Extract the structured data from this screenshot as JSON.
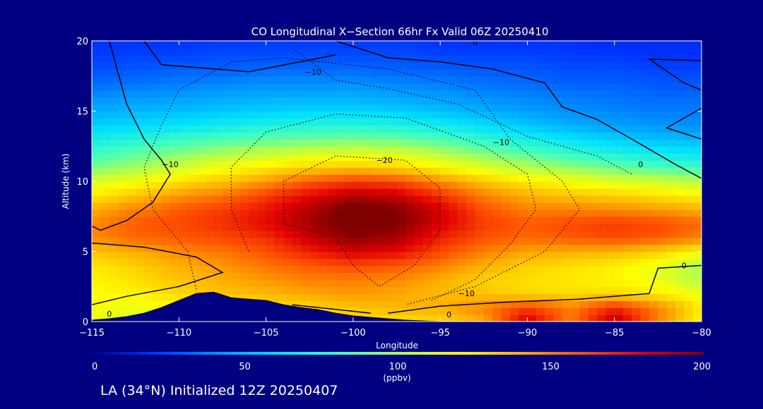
{
  "chart_data": {
    "type": "heatmap",
    "title": "CO Longitudinal X−Section 66hr  Fx Valid 06Z 20250410",
    "xlabel": "Longitude",
    "ylabel": "Altitude (km)",
    "xlim": [
      -115,
      -80
    ],
    "ylim": [
      0,
      20
    ],
    "x_ticks": [
      -115,
      -110,
      -105,
      -100,
      -95,
      -90,
      -85,
      -80
    ],
    "x_tick_labels": [
      "−115",
      "−110",
      "−105",
      "−100",
      "−95",
      "−90",
      "−85",
      "−80"
    ],
    "y_ticks": [
      0,
      5,
      10,
      15,
      20
    ],
    "y_tick_labels": [
      "0",
      "5",
      "10",
      "15",
      "20"
    ],
    "grid": false,
    "colorbar": {
      "min": 0,
      "max": 200,
      "ticks": [
        0,
        50,
        100,
        150,
        200
      ],
      "tick_labels": [
        "0",
        "50",
        "100",
        "150",
        "200"
      ],
      "units": "(ppbv)",
      "colors": [
        "#000080",
        "#0030ff",
        "#0090ff",
        "#00e0ff",
        "#40ffc0",
        "#b0ff50",
        "#ffff00",
        "#ffb000",
        "#ff5000",
        "#e00000",
        "#800000"
      ]
    },
    "contour_labels": [
      "0",
      "−10",
      "−20"
    ],
    "heatmap_grid": {
      "x": [
        -115,
        -112.5,
        -110,
        -107.5,
        -105,
        -102.5,
        -100,
        -97.5,
        -95,
        -92.5,
        -90,
        -87.5,
        -85,
        -82.5,
        -80
      ],
      "y": [
        0,
        1,
        2,
        3,
        4,
        5,
        6,
        7,
        8,
        9,
        10,
        11,
        12,
        13,
        14,
        15,
        16,
        17,
        18,
        19,
        20
      ],
      "z": [
        [
          115,
          110,
          112,
          118,
          120,
          122,
          125,
          128,
          130,
          140,
          185,
          150,
          190,
          150,
          120
        ],
        [
          118,
          115,
          118,
          122,
          126,
          130,
          135,
          138,
          140,
          150,
          165,
          150,
          170,
          150,
          125
        ],
        [
          120,
          122,
          130,
          135,
          138,
          142,
          145,
          142,
          138,
          135,
          130,
          128,
          130,
          125,
          115
        ],
        [
          122,
          128,
          135,
          140,
          145,
          150,
          150,
          148,
          140,
          132,
          128,
          125,
          122,
          115,
          100
        ],
        [
          125,
          132,
          140,
          145,
          152,
          158,
          162,
          158,
          150,
          140,
          132,
          128,
          124,
          115,
          100
        ],
        [
          135,
          140,
          148,
          152,
          160,
          172,
          182,
          178,
          162,
          150,
          142,
          140,
          138,
          132,
          120
        ],
        [
          148,
          155,
          158,
          162,
          168,
          185,
          198,
          192,
          172,
          160,
          155,
          158,
          162,
          158,
          150
        ],
        [
          148,
          158,
          162,
          168,
          178,
          192,
          205,
          200,
          182,
          165,
          158,
          162,
          165,
          162,
          155
        ],
        [
          140,
          150,
          158,
          165,
          175,
          190,
          205,
          200,
          182,
          160,
          150,
          150,
          148,
          145,
          140
        ],
        [
          125,
          135,
          145,
          152,
          165,
          178,
          190,
          185,
          168,
          150,
          140,
          135,
          132,
          128,
          122
        ],
        [
          110,
          118,
          128,
          135,
          145,
          158,
          165,
          162,
          148,
          135,
          125,
          118,
          112,
          108,
          102
        ],
        [
          90,
          98,
          108,
          118,
          125,
          132,
          135,
          132,
          122,
          112,
          102,
          95,
          88,
          82,
          78
        ],
        [
          78,
          85,
          92,
          100,
          105,
          110,
          112,
          110,
          102,
          92,
          84,
          76,
          70,
          66,
          62
        ],
        [
          68,
          72,
          78,
          82,
          86,
          88,
          90,
          88,
          82,
          75,
          68,
          62,
          56,
          52,
          50
        ],
        [
          56,
          58,
          62,
          66,
          70,
          72,
          72,
          70,
          66,
          60,
          54,
          48,
          44,
          42,
          40
        ],
        [
          48,
          50,
          52,
          54,
          56,
          58,
          58,
          56,
          52,
          48,
          44,
          40,
          38,
          36,
          36
        ],
        [
          40,
          42,
          44,
          46,
          48,
          48,
          48,
          46,
          44,
          40,
          38,
          36,
          34,
          32,
          32
        ],
        [
          32,
          34,
          36,
          38,
          40,
          40,
          40,
          38,
          36,
          34,
          32,
          30,
          30,
          28,
          28
        ],
        [
          26,
          28,
          30,
          30,
          32,
          32,
          32,
          30,
          30,
          28,
          28,
          26,
          26,
          24,
          24
        ],
        [
          22,
          24,
          24,
          26,
          26,
          26,
          26,
          26,
          24,
          24,
          24,
          22,
          22,
          20,
          20
        ],
        [
          20,
          20,
          20,
          22,
          22,
          22,
          22,
          22,
          20,
          20,
          20,
          20,
          18,
          18,
          18
        ]
      ]
    },
    "terrain": {
      "x": [
        -115,
        -114,
        -113,
        -112,
        -111,
        -110,
        -109,
        -108,
        -107,
        -106,
        -105,
        -104,
        -103,
        -102,
        -101,
        -100,
        -99,
        -98,
        -97,
        -96,
        -95,
        -80
      ],
      "y": [
        0.1,
        0.2,
        0.35,
        0.6,
        1.0,
        1.5,
        2.0,
        2.1,
        1.7,
        1.6,
        1.5,
        1.2,
        1.0,
        0.85,
        0.6,
        0.4,
        0.3,
        0.2,
        0.1,
        0.05,
        0,
        0
      ]
    }
  },
  "footer_text": "LA (34°N) Initialized 12Z 20250407"
}
